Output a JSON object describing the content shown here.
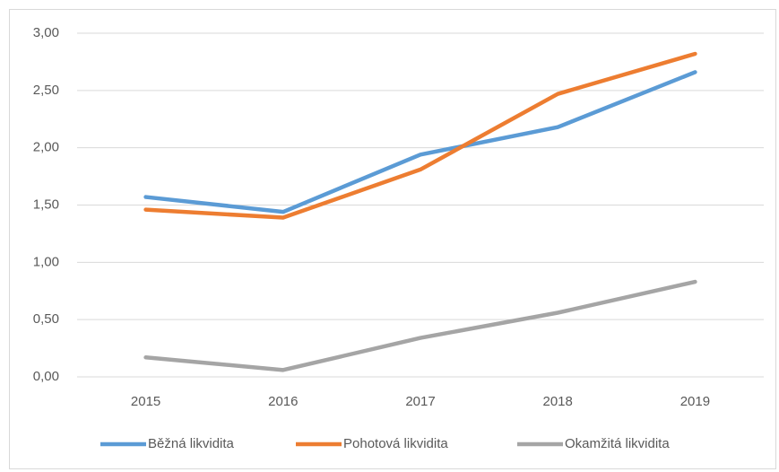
{
  "chart_data": {
    "type": "line",
    "categories": [
      "2015",
      "2016",
      "2017",
      "2018",
      "2019"
    ],
    "series": [
      {
        "name": "Běžná likvidita",
        "color": "#5b9bd5",
        "values": [
          1.57,
          1.44,
          1.94,
          2.18,
          2.66
        ]
      },
      {
        "name": "Pohotová likvidita",
        "color": "#ed7d31",
        "values": [
          1.46,
          1.39,
          1.81,
          2.47,
          2.82
        ]
      },
      {
        "name": "Okamžitá likvidita",
        "color": "#a5a5a5",
        "values": [
          0.17,
          0.06,
          0.34,
          0.56,
          0.83
        ]
      }
    ],
    "ylim": [
      0,
      3
    ],
    "yticks": [
      {
        "value": 0,
        "label": "0,00"
      },
      {
        "value": 0.5,
        "label": "0,50"
      },
      {
        "value": 1,
        "label": "1,00"
      },
      {
        "value": 1.5,
        "label": "1,50"
      },
      {
        "value": 2,
        "label": "2,00"
      },
      {
        "value": 2.5,
        "label": "2,50"
      },
      {
        "value": 3,
        "label": "3,00"
      }
    ],
    "grid": true,
    "legend": "bottom"
  }
}
